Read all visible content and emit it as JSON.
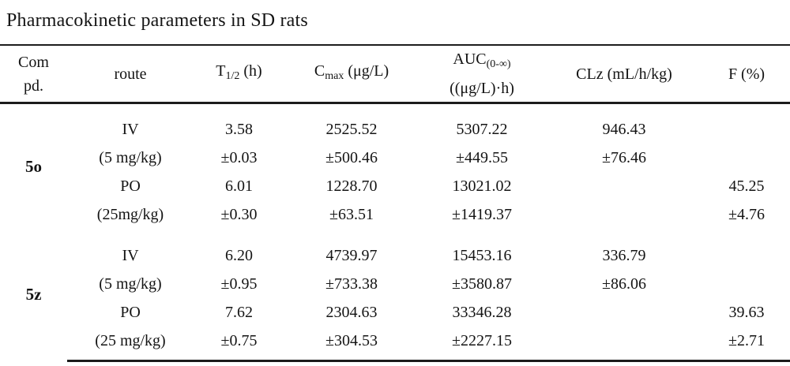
{
  "title": "Pharmacokinetic parameters in SD rats",
  "table": {
    "headers": {
      "compound_line1": "Com",
      "compound_line2": "pd.",
      "route": "route",
      "t_half_base": "T",
      "t_half_sub": "1/2",
      "t_half_unit": " (h)",
      "cmax_base": "C",
      "cmax_sub": "max",
      "cmax_unit": " (μg/L)",
      "auc_base": "AUC",
      "auc_sub": "(0-∞)",
      "auc_unit": "((μg/L)·h)",
      "clz": "CLz (mL/h/kg)",
      "f": "F (%)"
    },
    "groups": [
      {
        "compound": "5o",
        "doses": [
          {
            "route": "IV",
            "dose": "(5 mg/kg)",
            "t_half": "3.58",
            "t_half_sd": "±0.03",
            "cmax": "2525.52",
            "cmax_sd": "±500.46",
            "auc": "5307.22",
            "auc_sd": "±449.55",
            "clz": "946.43",
            "clz_sd": "±76.46",
            "f": "",
            "f_sd": ""
          },
          {
            "route": "PO",
            "dose": "(25mg/kg)",
            "t_half": "6.01",
            "t_half_sd": "±0.30",
            "cmax": "1228.70",
            "cmax_sd": "±63.51",
            "auc": "13021.02",
            "auc_sd": "±1419.37",
            "clz": "",
            "clz_sd": "",
            "f": "45.25",
            "f_sd": "±4.76"
          }
        ]
      },
      {
        "compound": "5z",
        "doses": [
          {
            "route": "IV",
            "dose": "(5 mg/kg)",
            "t_half": "6.20",
            "t_half_sd": "±0.95",
            "cmax": "4739.97",
            "cmax_sd": "±733.38",
            "auc": "15453.16",
            "auc_sd": "±3580.87",
            "clz": "336.79",
            "clz_sd": "±86.06",
            "f": "",
            "f_sd": ""
          },
          {
            "route": "PO",
            "dose": "(25 mg/kg)",
            "t_half": "7.62",
            "t_half_sd": "±0.75",
            "cmax": "2304.63",
            "cmax_sd": "±304.53",
            "auc": "33346.28",
            "auc_sd": "±2227.15",
            "clz": "",
            "clz_sd": "",
            "f": "39.63",
            "f_sd": "±2.71"
          }
        ]
      }
    ]
  }
}
